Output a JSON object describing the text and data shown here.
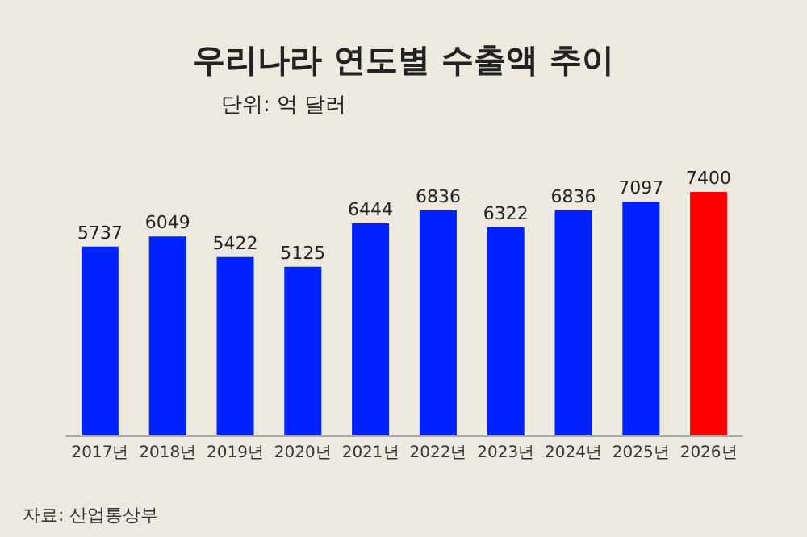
{
  "chart_data": {
    "type": "bar",
    "title": "우리나라 연도별 수출액 추이",
    "subtitle": "단위: 억 달러",
    "categories": [
      "2017년",
      "2018년",
      "2019년",
      "2020년",
      "2021년",
      "2022년",
      "2023년",
      "2024년",
      "2025년",
      "2026년"
    ],
    "values": [
      5737,
      6049,
      5422,
      5125,
      6444,
      6836,
      6322,
      6836,
      7097,
      7400
    ],
    "colors": [
      "#0022ff",
      "#0022ff",
      "#0022ff",
      "#0022ff",
      "#0022ff",
      "#0022ff",
      "#0022ff",
      "#0022ff",
      "#0022ff",
      "#ff0000"
    ],
    "data_labels": true,
    "annotations": [
      "자료: 산업통상부"
    ]
  }
}
